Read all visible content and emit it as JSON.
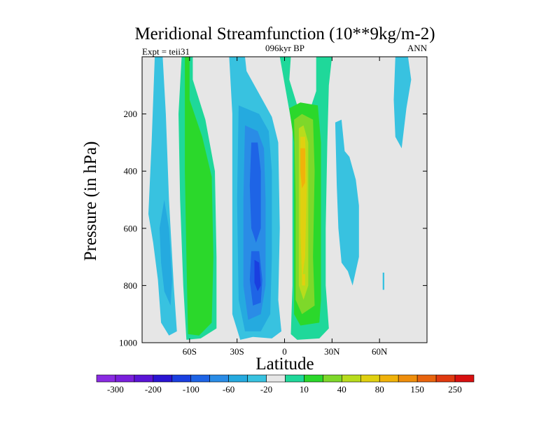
{
  "chart_data": {
    "type": "heatmap",
    "title": "Meridional Streamfunction (10**9kg/m-2)",
    "subtitle": "096kyr BP",
    "left_label": "Expt = teii31",
    "right_label": "ANN",
    "xlabel": "Latitude",
    "ylabel": "Pressure (in hPa)",
    "xlim": [
      -90,
      90
    ],
    "ylim": [
      0,
      1000
    ],
    "y_inverted": true,
    "x_ticks": [
      {
        "value": -60,
        "label": "60S"
      },
      {
        "value": -30,
        "label": "30S"
      },
      {
        "value": 0,
        "label": "0"
      },
      {
        "value": 30,
        "label": "30N"
      },
      {
        "value": 60,
        "label": "60N"
      }
    ],
    "y_ticks": [
      {
        "value": 200,
        "label": "200"
      },
      {
        "value": 400,
        "label": "400"
      },
      {
        "value": 600,
        "label": "600"
      },
      {
        "value": 800,
        "label": "800"
      },
      {
        "value": 1000,
        "label": "1000"
      }
    ],
    "colorbar": {
      "colors": [
        "#8a2be2",
        "#7a1fdc",
        "#5a14d6",
        "#2a14d2",
        "#1a3fe0",
        "#1e64e6",
        "#2a8ce6",
        "#25aadf",
        "#38c2e0",
        "#e6e6e6",
        "#1fd89a",
        "#2bd82b",
        "#7ed82a",
        "#b8dc1c",
        "#e0d010",
        "#f0b20a",
        "#ef8e0c",
        "#e8640e",
        "#e03a10",
        "#d81010"
      ],
      "labels": [
        {
          "boundary": 1,
          "text": "-300"
        },
        {
          "boundary": 3,
          "text": "-200"
        },
        {
          "boundary": 5,
          "text": "-100"
        },
        {
          "boundary": 7,
          "text": "-60"
        },
        {
          "boundary": 9,
          "text": "-20"
        },
        {
          "boundary": 11,
          "text": "10"
        },
        {
          "boundary": 13,
          "text": "40"
        },
        {
          "boundary": 15,
          "text": "80"
        },
        {
          "boundary": 17,
          "text": "150"
        },
        {
          "boundary": 19,
          "text": "250"
        }
      ]
    },
    "background_color": "#e6e6e6",
    "contour_regions": [
      {
        "name": "sh-polar-cell",
        "color": "#38c2e0",
        "layer": 0,
        "poly": [
          [
            -82,
            0
          ],
          [
            -77,
            0
          ],
          [
            -75,
            200
          ],
          [
            -73,
            500
          ],
          [
            -70,
            800
          ],
          [
            -68,
            960
          ],
          [
            -73,
            975
          ],
          [
            -78,
            930
          ],
          [
            -80,
            780
          ],
          [
            -83,
            650
          ],
          [
            -86,
            550
          ],
          [
            -84,
            300
          ]
        ]
      },
      {
        "name": "sh-polar-cell",
        "color": "#25aadf",
        "layer": 1,
        "poly": [
          [
            -79,
            600
          ],
          [
            -76,
            500
          ],
          [
            -73,
            600
          ],
          [
            -71,
            780
          ],
          [
            -72,
            870
          ],
          [
            -76,
            820
          ],
          [
            -78,
            720
          ]
        ]
      },
      {
        "name": "sh-ferrel-cell",
        "color": "#1fd89a",
        "layer": 0,
        "poly": [
          [
            -65,
            0
          ],
          [
            -58,
            0
          ],
          [
            -58,
            80
          ],
          [
            -50,
            220
          ],
          [
            -44,
            400
          ],
          [
            -43,
            700
          ],
          [
            -43,
            950
          ],
          [
            -53,
            985
          ],
          [
            -62,
            990
          ],
          [
            -64,
            800
          ],
          [
            -66,
            500
          ],
          [
            -67,
            200
          ]
        ]
      },
      {
        "name": "sh-ferrel-cell",
        "color": "#2bd82b",
        "layer": 1,
        "poly": [
          [
            -63,
            0
          ],
          [
            -60,
            0
          ],
          [
            -60,
            150
          ],
          [
            -52,
            280
          ],
          [
            -46,
            420
          ],
          [
            -45,
            700
          ],
          [
            -46,
            930
          ],
          [
            -54,
            975
          ],
          [
            -61,
            970
          ],
          [
            -62,
            700
          ],
          [
            -63,
            400
          ]
        ]
      },
      {
        "name": "sh-hadley-cell",
        "color": "#38c2e0",
        "layer": 0,
        "poly": [
          [
            -35,
            0
          ],
          [
            -25,
            0
          ],
          [
            -24,
            50
          ],
          [
            -16,
            130
          ],
          [
            -8,
            210
          ],
          [
            -4,
            300
          ],
          [
            -3,
            600
          ],
          [
            -4,
            850
          ],
          [
            -2,
            960
          ],
          [
            -8,
            985
          ],
          [
            -20,
            980
          ],
          [
            -28,
            990
          ],
          [
            -33,
            900
          ],
          [
            -33,
            500
          ],
          [
            -33,
            200
          ]
        ]
      },
      {
        "name": "sh-hadley-cell",
        "color": "#25aadf",
        "layer": 1,
        "poly": [
          [
            -29,
            170
          ],
          [
            -16,
            200
          ],
          [
            -10,
            260
          ],
          [
            -8,
            400
          ],
          [
            -8,
            700
          ],
          [
            -9,
            900
          ],
          [
            -15,
            960
          ],
          [
            -25,
            960
          ],
          [
            -29,
            850
          ],
          [
            -30,
            500
          ]
        ]
      },
      {
        "name": "sh-hadley-cell",
        "color": "#2a8ce6",
        "layer": 2,
        "poly": [
          [
            -25,
            240
          ],
          [
            -17,
            260
          ],
          [
            -13,
            320
          ],
          [
            -12,
            500
          ],
          [
            -12,
            800
          ],
          [
            -15,
            900
          ],
          [
            -23,
            920
          ],
          [
            -26,
            800
          ],
          [
            -26,
            500
          ]
        ]
      },
      {
        "name": "sh-hadley-cell",
        "color": "#1e64e6",
        "layer": 3,
        "poly": [
          [
            -21,
            300
          ],
          [
            -17,
            300
          ],
          [
            -15,
            400
          ],
          [
            -15,
            600
          ],
          [
            -18,
            650
          ],
          [
            -21,
            600
          ],
          [
            -22,
            450
          ]
        ]
      },
      {
        "name": "sh-hadley-cell",
        "color": "#1e64e6",
        "layer": 3,
        "poly": [
          [
            -21,
            680
          ],
          [
            -16,
            680
          ],
          [
            -14,
            780
          ],
          [
            -15,
            860
          ],
          [
            -20,
            870
          ],
          [
            -22,
            780
          ]
        ]
      },
      {
        "name": "sh-hadley-cell",
        "color": "#1a3fe0",
        "layer": 4,
        "poly": [
          [
            -19,
            710
          ],
          [
            -16,
            720
          ],
          [
            -15,
            800
          ],
          [
            -17,
            820
          ],
          [
            -19,
            790
          ]
        ]
      },
      {
        "name": "nh-hadley-cell",
        "color": "#1fd89a",
        "layer": 0,
        "poly": [
          [
            -3,
            0
          ],
          [
            4,
            0
          ],
          [
            3,
            80
          ],
          [
            8,
            170
          ],
          [
            17,
            170
          ],
          [
            20,
            120
          ],
          [
            20,
            0
          ],
          [
            30,
            0
          ],
          [
            28,
            100
          ],
          [
            27,
            300
          ],
          [
            26,
            600
          ],
          [
            26,
            800
          ],
          [
            28,
            950
          ],
          [
            22,
            985
          ],
          [
            8,
            990
          ],
          [
            4,
            970
          ],
          [
            5,
            800
          ],
          [
            5,
            500
          ],
          [
            5,
            250
          ]
        ]
      },
      {
        "name": "nh-hadley-cell",
        "color": "#2bd82b",
        "layer": 1,
        "poly": [
          [
            3,
            180
          ],
          [
            10,
            160
          ],
          [
            21,
            170
          ],
          [
            23,
            300
          ],
          [
            23,
            600
          ],
          [
            23,
            850
          ],
          [
            22,
            930
          ],
          [
            10,
            940
          ],
          [
            6,
            900
          ],
          [
            6,
            600
          ],
          [
            6,
            300
          ]
        ]
      },
      {
        "name": "nh-hadley-cell",
        "color": "#7ed82a",
        "layer": 2,
        "poly": [
          [
            6,
            220
          ],
          [
            11,
            200
          ],
          [
            18,
            220
          ],
          [
            19,
            400
          ],
          [
            18,
            700
          ],
          [
            19,
            870
          ],
          [
            11,
            900
          ],
          [
            7,
            850
          ],
          [
            7,
            500
          ]
        ]
      },
      {
        "name": "nh-hadley-cell",
        "color": "#b8dc1c",
        "layer": 3,
        "poly": [
          [
            9,
            250
          ],
          [
            12,
            240
          ],
          [
            15,
            300
          ],
          [
            15,
            500
          ],
          [
            15,
            800
          ],
          [
            12,
            850
          ],
          [
            9,
            800
          ],
          [
            9,
            500
          ]
        ]
      },
      {
        "name": "nh-hadley-cell",
        "color": "#e0d010",
        "layer": 4,
        "poly": [
          [
            10,
            280
          ],
          [
            13,
            280
          ],
          [
            14,
            450
          ],
          [
            13,
            700
          ],
          [
            11,
            780
          ],
          [
            10,
            600
          ]
        ]
      },
      {
        "name": "nh-hadley-cell",
        "color": "#f0b20a",
        "layer": 5,
        "poly": [
          [
            10,
            320
          ],
          [
            13,
            320
          ],
          [
            13,
            440
          ],
          [
            11,
            460
          ],
          [
            10,
            400
          ]
        ]
      },
      {
        "name": "nh-hadley-cell",
        "color": "#e0d010",
        "layer": 5,
        "poly": [
          [
            11,
            760
          ],
          [
            13,
            760
          ],
          [
            13,
            800
          ],
          [
            11,
            800
          ]
        ]
      },
      {
        "name": "nh-ferrel-cell",
        "color": "#38c2e0",
        "layer": 0,
        "poly": [
          [
            32,
            230
          ],
          [
            36,
            220
          ],
          [
            38,
            330
          ],
          [
            41,
            350
          ],
          [
            45,
            430
          ],
          [
            47,
            520
          ],
          [
            47,
            700
          ],
          [
            43,
            800
          ],
          [
            40,
            750
          ],
          [
            36,
            720
          ],
          [
            34,
            600
          ],
          [
            33,
            450
          ]
        ]
      },
      {
        "name": "nh-ferrel-cell",
        "color": "#38c2e0",
        "layer": 0,
        "poly": [
          [
            35,
            300
          ],
          [
            37,
            300
          ],
          [
            38,
            400
          ],
          [
            37,
            450
          ],
          [
            35,
            400
          ]
        ]
      },
      {
        "name": "nh-polar-cell",
        "color": "#38c2e0",
        "layer": 0,
        "poly": [
          [
            70,
            0
          ],
          [
            78,
            0
          ],
          [
            80,
            80
          ],
          [
            77,
            180
          ],
          [
            74,
            320
          ],
          [
            70,
            280
          ],
          [
            69,
            150
          ]
        ]
      },
      {
        "name": "nh-polar-cell",
        "color": "#38c2e0",
        "layer": 0,
        "poly": [
          [
            62,
            755
          ],
          [
            63,
            755
          ],
          [
            63,
            815
          ],
          [
            62,
            815
          ]
        ]
      }
    ]
  }
}
